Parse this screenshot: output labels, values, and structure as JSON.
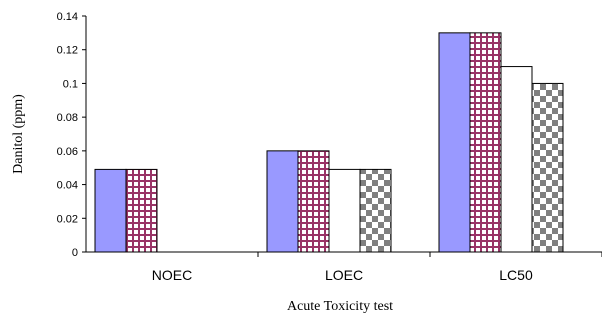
{
  "chart_data": {
    "type": "bar",
    "title": "",
    "xlabel": "Acute Toxicity test",
    "ylabel": "Danitol (ppm)",
    "categories": [
      "NOEC",
      "LOEC",
      "LC50"
    ],
    "ylim": [
      0,
      0.14
    ],
    "yticks": [
      "0",
      "0.02",
      "0.04",
      "0.06",
      "0.08",
      "0.1",
      "0.12",
      "0.14"
    ],
    "grid": false,
    "legend": "none",
    "series": [
      {
        "values": [
          0.049,
          0.06,
          0.13
        ],
        "color": "#9999ff",
        "pattern": "solid"
      },
      {
        "values": [
          0.049,
          0.06,
          0.13
        ],
        "color": "#993366",
        "pattern": "grid"
      },
      {
        "values": [
          null,
          0.049,
          0.11
        ],
        "color": "#ffffff",
        "pattern": "solid"
      },
      {
        "values": [
          null,
          0.049,
          0.1
        ],
        "color": "#808080",
        "pattern": "checker"
      }
    ]
  }
}
